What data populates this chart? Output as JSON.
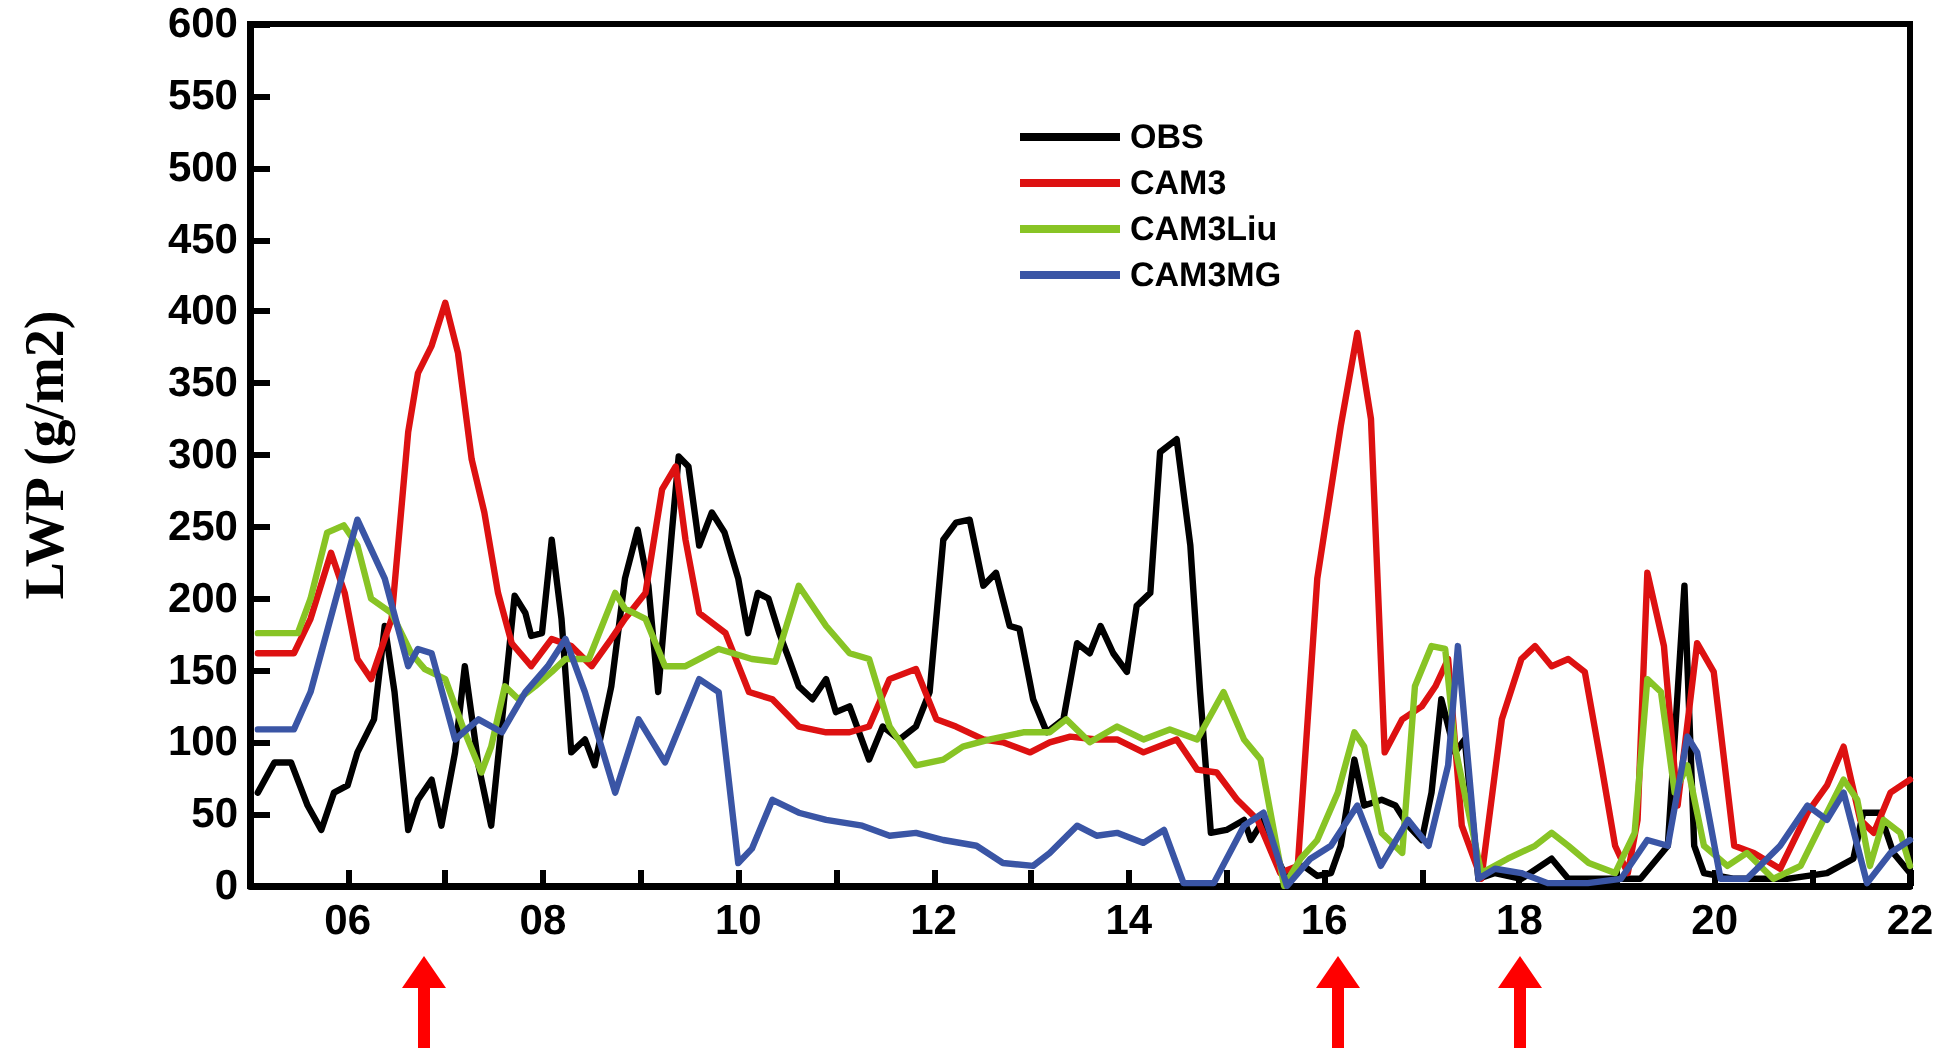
{
  "chart_data": {
    "type": "line",
    "ylabel": "LWP (g/m2)",
    "xlim": [
      5,
      22
    ],
    "ylim": [
      0,
      600
    ],
    "xticks": [
      {
        "value": 6,
        "label": "06"
      },
      {
        "value": 7,
        "label": null
      },
      {
        "value": 8,
        "label": "08"
      },
      {
        "value": 9,
        "label": null
      },
      {
        "value": 10,
        "label": "10"
      },
      {
        "value": 11,
        "label": null
      },
      {
        "value": 12,
        "label": "12"
      },
      {
        "value": 13,
        "label": null
      },
      {
        "value": 14,
        "label": "14"
      },
      {
        "value": 15,
        "label": null
      },
      {
        "value": 16,
        "label": "16"
      },
      {
        "value": 17,
        "label": null
      },
      {
        "value": 18,
        "label": "18"
      },
      {
        "value": 19,
        "label": null
      },
      {
        "value": 20,
        "label": "20"
      },
      {
        "value": 21,
        "label": null
      },
      {
        "value": 22,
        "label": "22"
      }
    ],
    "yticks": [
      0,
      50,
      100,
      150,
      200,
      250,
      300,
      350,
      400,
      450,
      500,
      550,
      600
    ],
    "grid": false,
    "legend": "top",
    "marker": "none",
    "line_style": "solid",
    "series": [
      {
        "name": "OBS",
        "color": "#000000",
        "x": [
          5.08,
          5.25,
          5.42,
          5.59,
          5.73,
          5.86,
          6.0,
          6.1,
          6.27,
          6.38,
          6.48,
          6.62,
          6.72,
          6.86,
          6.96,
          7.1,
          7.2,
          7.34,
          7.47,
          7.61,
          7.71,
          7.82,
          7.88,
          7.99,
          8.09,
          8.19,
          8.29,
          8.43,
          8.53,
          8.7,
          8.84,
          8.97,
          9.08,
          9.18,
          9.32,
          9.39,
          9.49,
          9.6,
          9.73,
          9.86,
          10.0,
          10.1,
          10.2,
          10.31,
          10.42,
          10.52,
          10.62,
          10.76,
          10.9,
          11.0,
          11.14,
          11.34,
          11.48,
          11.65,
          11.82,
          11.96,
          12.1,
          12.23,
          12.37,
          12.51,
          12.64,
          12.78,
          12.88,
          13.02,
          13.16,
          13.33,
          13.47,
          13.6,
          13.71,
          13.84,
          13.98,
          14.08,
          14.22,
          14.32,
          14.49,
          14.63,
          14.73,
          14.84,
          15.0,
          15.18,
          15.25,
          15.38,
          15.52,
          15.62,
          15.79,
          15.93,
          16.07,
          16.17,
          16.31,
          16.41,
          16.59,
          16.73,
          16.86,
          17.0,
          17.1,
          17.2,
          17.34,
          17.44,
          17.58,
          17.75,
          18.02,
          18.33,
          18.5,
          18.84,
          19.24,
          19.52,
          19.69,
          19.79,
          19.89,
          20.2,
          20.74,
          21.15,
          21.42,
          21.52,
          21.69,
          21.83,
          22.0
        ],
        "values": [
          65,
          86,
          86,
          56,
          39,
          65,
          70,
          93,
          116,
          181,
          135,
          39,
          60,
          74,
          42,
          93,
          153,
          84,
          42,
          135,
          202,
          190,
          174,
          176,
          241,
          186,
          93,
          102,
          84,
          139,
          214,
          248,
          209,
          135,
          246,
          299,
          292,
          237,
          260,
          246,
          214,
          176,
          204,
          200,
          176,
          158,
          139,
          130,
          144,
          121,
          125,
          88,
          111,
          102,
          111,
          135,
          241,
          253,
          255,
          209,
          218,
          181,
          179,
          130,
          107,
          116,
          169,
          162,
          181,
          162,
          149,
          195,
          204,
          302,
          311,
          237,
          135,
          37,
          39,
          46,
          32,
          46,
          19,
          5,
          14,
          7,
          9,
          28,
          88,
          56,
          60,
          56,
          42,
          32,
          65,
          130,
          93,
          102,
          5,
          9,
          5,
          19,
          5,
          5,
          5,
          28,
          209,
          28,
          9,
          5,
          5,
          9,
          19,
          51,
          51,
          23,
          9
        ]
      },
      {
        "name": "CAM3",
        "color": "#dd1111",
        "x": [
          5.08,
          5.45,
          5.62,
          5.83,
          5.97,
          6.1,
          6.24,
          6.45,
          6.62,
          6.72,
          6.86,
          7.0,
          7.13,
          7.27,
          7.4,
          7.54,
          7.68,
          7.88,
          8.09,
          8.29,
          8.5,
          8.7,
          8.84,
          9.05,
          9.22,
          9.36,
          9.46,
          9.6,
          9.87,
          10.11,
          10.35,
          10.62,
          10.9,
          11.14,
          11.34,
          11.55,
          11.82,
          12.03,
          12.23,
          12.51,
          12.71,
          12.99,
          13.19,
          13.4,
          13.67,
          13.88,
          14.15,
          14.49,
          14.7,
          14.9,
          15.11,
          15.32,
          15.55,
          15.73,
          15.93,
          16.17,
          16.34,
          16.48,
          16.62,
          16.8,
          17.0,
          17.14,
          17.27,
          17.41,
          17.61,
          17.82,
          18.02,
          18.16,
          18.33,
          18.5,
          18.67,
          18.84,
          18.98,
          19.11,
          19.21,
          19.31,
          19.48,
          19.62,
          19.82,
          19.99,
          20.2,
          20.4,
          20.67,
          20.95,
          21.15,
          21.32,
          21.49,
          21.63,
          21.8,
          22.0
        ],
        "values": [
          162,
          162,
          186,
          232,
          204,
          158,
          144,
          186,
          316,
          357,
          376,
          406,
          371,
          297,
          260,
          204,
          169,
          153,
          172,
          167,
          153,
          172,
          186,
          204,
          276,
          292,
          241,
          190,
          176,
          135,
          130,
          111,
          107,
          107,
          111,
          144,
          151,
          116,
          111,
          102,
          100,
          93,
          100,
          104,
          102,
          102,
          93,
          102,
          81,
          79,
          60,
          46,
          9,
          14,
          214,
          320,
          385,
          325,
          93,
          116,
          125,
          139,
          158,
          42,
          5,
          116,
          158,
          167,
          153,
          158,
          149,
          84,
          28,
          9,
          46,
          218,
          167,
          56,
          169,
          149,
          28,
          23,
          12,
          51,
          70,
          97,
          46,
          37,
          65,
          74
        ]
      },
      {
        "name": "CAM3Liu",
        "color": "#88c425",
        "x": [
          5.08,
          5.49,
          5.62,
          5.79,
          5.96,
          6.1,
          6.24,
          6.45,
          6.65,
          6.79,
          7.0,
          7.2,
          7.37,
          7.47,
          7.61,
          7.75,
          7.92,
          8.09,
          8.23,
          8.47,
          8.74,
          8.84,
          9.05,
          9.25,
          9.46,
          9.8,
          10.14,
          10.38,
          10.62,
          10.9,
          11.14,
          11.34,
          11.55,
          11.82,
          12.1,
          12.3,
          12.58,
          12.92,
          13.19,
          13.36,
          13.6,
          13.88,
          14.15,
          14.42,
          14.7,
          14.97,
          15.18,
          15.35,
          15.59,
          15.76,
          15.93,
          16.14,
          16.31,
          16.41,
          16.59,
          16.8,
          16.93,
          17.1,
          17.24,
          17.34,
          17.61,
          17.88,
          18.16,
          18.33,
          18.5,
          18.71,
          18.98,
          19.18,
          19.31,
          19.45,
          19.59,
          19.72,
          19.89,
          20.13,
          20.33,
          20.6,
          20.88,
          21.15,
          21.32,
          21.46,
          21.59,
          21.73,
          21.9,
          22.0
        ],
        "values": [
          176,
          176,
          200,
          246,
          251,
          237,
          200,
          190,
          162,
          151,
          144,
          107,
          79,
          97,
          139,
          130,
          139,
          149,
          158,
          158,
          204,
          193,
          186,
          153,
          153,
          165,
          158,
          156,
          209,
          181,
          162,
          158,
          111,
          84,
          88,
          97,
          102,
          107,
          107,
          116,
          100,
          111,
          102,
          109,
          102,
          135,
          102,
          88,
          0,
          19,
          32,
          65,
          107,
          97,
          37,
          23,
          139,
          167,
          165,
          97,
          9,
          19,
          28,
          37,
          28,
          16,
          9,
          37,
          144,
          135,
          65,
          84,
          28,
          14,
          23,
          5,
          14,
          51,
          74,
          60,
          14,
          46,
          37,
          14
        ]
      },
      {
        "name": "CAM3MG",
        "color": "#3a55a5",
        "x": [
          5.08,
          5.45,
          5.62,
          5.86,
          6.1,
          6.38,
          6.62,
          6.72,
          6.86,
          7.1,
          7.34,
          7.58,
          7.82,
          8.05,
          8.23,
          8.43,
          8.74,
          8.98,
          9.25,
          9.6,
          9.8,
          10.0,
          10.14,
          10.35,
          10.62,
          10.9,
          11.27,
          11.55,
          11.82,
          12.1,
          12.44,
          12.71,
          13.02,
          13.19,
          13.47,
          13.67,
          13.88,
          14.15,
          14.36,
          14.56,
          14.87,
          15.18,
          15.38,
          15.62,
          15.86,
          16.07,
          16.34,
          16.58,
          16.86,
          17.07,
          17.27,
          17.37,
          17.58,
          17.75,
          18.02,
          18.29,
          18.7,
          19.04,
          19.31,
          19.52,
          19.72,
          19.82,
          20.06,
          20.33,
          20.67,
          20.95,
          21.15,
          21.32,
          21.56,
          21.8,
          22.0
        ],
        "values": [
          109,
          109,
          135,
          195,
          255,
          214,
          153,
          165,
          162,
          102,
          116,
          107,
          135,
          153,
          172,
          135,
          65,
          116,
          86,
          144,
          135,
          16,
          26,
          60,
          51,
          46,
          42,
          35,
          37,
          32,
          28,
          16,
          14,
          23,
          42,
          35,
          37,
          30,
          39,
          2,
          2,
          42,
          51,
          0,
          19,
          28,
          56,
          14,
          46,
          28,
          84,
          167,
          5,
          12,
          9,
          2,
          2,
          5,
          32,
          28,
          104,
          93,
          5,
          5,
          28,
          56,
          46,
          65,
          2,
          23,
          32
        ]
      }
    ]
  }
}
